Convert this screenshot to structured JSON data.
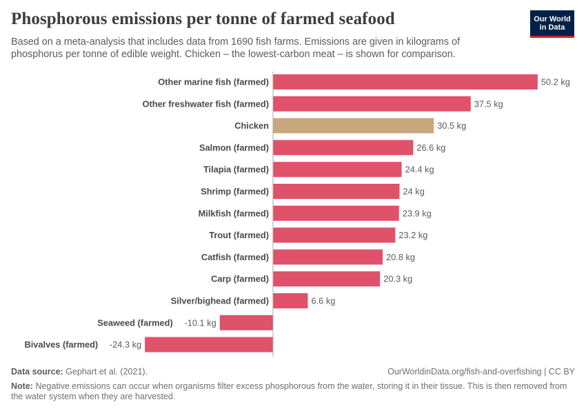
{
  "header": {
    "title": "Phosphorous emissions per tonne of farmed seafood",
    "subtitle": "Based on a meta-analysis that includes data from 1690 fish farms. Emissions are given in kilograms of phosphorus per tonne of edible weight. Chicken – the lowest-carbon meat – is shown for comparison."
  },
  "logo": {
    "line1": "Our World",
    "line2": "in Data",
    "bg_color": "#002147",
    "accent_color": "#ce261e"
  },
  "footer": {
    "source_label": "Data source:",
    "source_text": "Gephart et al. (2021).",
    "url_text": "OurWorldinData.org/fish-and-overfishing | CC BY",
    "note_label": "Note:",
    "note_text": "Negative emissions can occur when organisms filter excess phosphorous from the water, storing it in their tissue. This is then removed from the water system when they are harvested."
  },
  "chart_data": {
    "type": "bar",
    "orientation": "horizontal",
    "unit": "kg",
    "categories": [
      "Other marine fish (farmed)",
      "Other freshwater fish (farmed)",
      "Chicken",
      "Salmon (farmed)",
      "Tilapia (farmed)",
      "Shrimp (farmed)",
      "Milkfish (farmed)",
      "Trout (farmed)",
      "Catfish (farmed)",
      "Carp (farmed)",
      "Silver/bighead (farmed)",
      "Seaweed (farmed)",
      "Bivalves (farmed)"
    ],
    "values": [
      50.2,
      37.5,
      30.5,
      26.6,
      24.4,
      24,
      23.9,
      23.2,
      20.8,
      20.3,
      6.6,
      -10.1,
      -24.3
    ],
    "value_labels": [
      "50.2 kg",
      "37.5 kg",
      "30.5 kg",
      "26.6 kg",
      "24.4 kg",
      "24 kg",
      "23.9 kg",
      "23.2 kg",
      "20.8 kg",
      "20.3 kg",
      "6.6 kg",
      "-10.1 kg",
      "-24.3 kg"
    ],
    "highlight_category": "Chicken",
    "colors": {
      "default": "#e0516a",
      "highlight": "#c9a77c",
      "axis": "#aaaaaa"
    },
    "xlim": [
      -24.3,
      50.2
    ],
    "grid": false
  }
}
